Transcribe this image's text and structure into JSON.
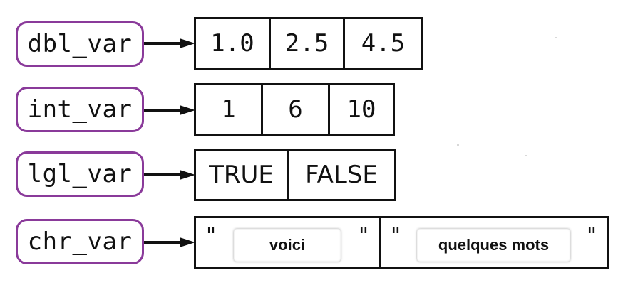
{
  "rows": [
    {
      "name": "dbl_var",
      "values": [
        "1.0",
        "2.5",
        "4.5"
      ]
    },
    {
      "name": "int_var",
      "values": [
        "1",
        "6",
        "10"
      ]
    },
    {
      "name": "lgl_var",
      "values": [
        "TRUE",
        "FALSE"
      ]
    },
    {
      "name": "chr_var",
      "values": [
        "voici",
        "quelques mots"
      ]
    }
  ],
  "colors": {
    "label_border": "#8a3a9a",
    "box_border": "#111111",
    "arrow": "#111111"
  }
}
